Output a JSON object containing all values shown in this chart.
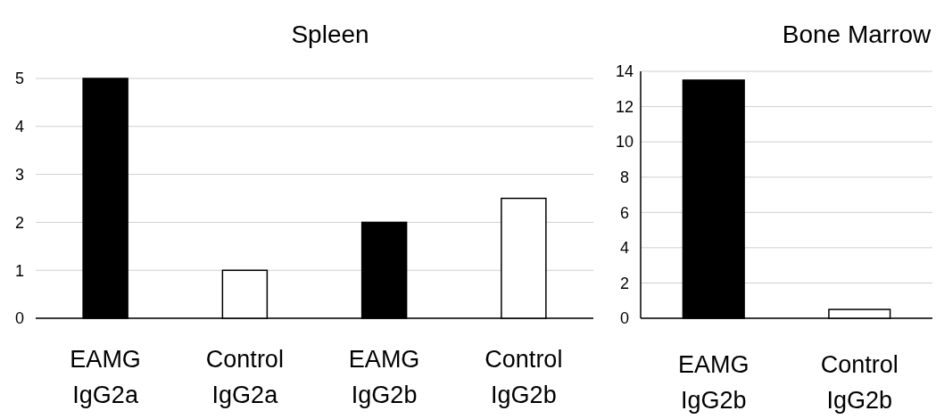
{
  "chart_data": [
    {
      "type": "bar",
      "title": "Spleen",
      "categories": [
        "EAMG\nIgG2a",
        "Control\nIgG2a",
        "EAMG\nIgG2b",
        "Control\nIgG2b"
      ],
      "values": [
        5,
        1,
        2,
        2.5
      ],
      "colors": [
        "#000000",
        "#ffffff",
        "#000000",
        "#ffffff"
      ],
      "ylim": [
        0,
        5
      ],
      "yticks": [
        0,
        1,
        2,
        3,
        4,
        5
      ],
      "grid": "y"
    },
    {
      "type": "bar",
      "title": "Bone Marrow",
      "categories": [
        "EAMG\nIgG2b",
        "Control\nIgG2b"
      ],
      "values": [
        13.5,
        0.5
      ],
      "colors": [
        "#000000",
        "#ffffff"
      ],
      "ylim": [
        0,
        14
      ],
      "yticks": [
        0,
        2,
        4,
        6,
        8,
        10,
        12,
        14
      ],
      "grid": "y"
    }
  ]
}
